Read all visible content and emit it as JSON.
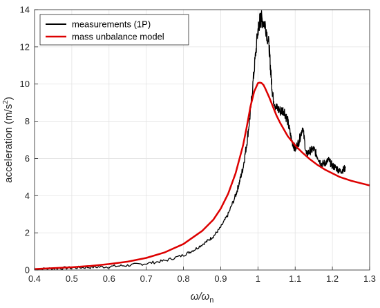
{
  "chart_data": {
    "type": "line",
    "xlabel": "ω/ω",
    "xlabel_sub": "n",
    "ylabel": "acceleration (m/s",
    "ylabel_sup": "2",
    "ylabel_close": ")",
    "xlim": [
      0.4,
      1.3
    ],
    "ylim": [
      0,
      14
    ],
    "x_ticks": [
      0.4,
      0.5,
      0.6,
      0.7,
      0.8,
      0.9,
      1.0,
      1.1,
      1.2,
      1.3
    ],
    "x_tick_labels": [
      "0.4",
      "0.5",
      "0.6",
      "0.7",
      "0.8",
      "0.9",
      "1",
      "1.1",
      "1.2",
      "1.3"
    ],
    "y_ticks": [
      0,
      2,
      4,
      6,
      8,
      10,
      12,
      14
    ],
    "y_tick_labels": [
      "0",
      "2",
      "4",
      "6",
      "8",
      "10",
      "12",
      "14"
    ],
    "grid": true,
    "legend_position": "top-left",
    "series": [
      {
        "name": "measurements (1P)",
        "color": "#000000",
        "x": [
          0.4,
          0.45,
          0.5,
          0.55,
          0.6,
          0.65,
          0.7,
          0.75,
          0.8,
          0.83,
          0.86,
          0.88,
          0.9,
          0.92,
          0.94,
          0.95,
          0.96,
          0.97,
          0.98,
          0.99,
          1.0,
          1.005,
          1.01,
          1.02,
          1.03,
          1.035,
          1.04,
          1.05,
          1.06,
          1.07,
          1.08,
          1.09,
          1.1,
          1.11,
          1.12,
          1.13,
          1.14,
          1.15,
          1.16,
          1.17,
          1.18,
          1.19,
          1.2,
          1.21,
          1.22,
          1.23,
          1.235
        ],
        "y": [
          0.05,
          0.08,
          0.12,
          0.15,
          0.18,
          0.25,
          0.35,
          0.5,
          0.8,
          1.1,
          1.5,
          1.8,
          2.3,
          3.0,
          4.0,
          4.7,
          5.5,
          6.8,
          8.5,
          10.8,
          12.9,
          13.4,
          13.5,
          13.2,
          12.0,
          10.5,
          9.3,
          8.7,
          8.55,
          8.6,
          8.0,
          7.0,
          6.5,
          6.9,
          7.7,
          6.2,
          6.4,
          6.5,
          6.1,
          5.7,
          5.75,
          5.9,
          5.6,
          5.5,
          5.3,
          5.4,
          5.5
        ]
      },
      {
        "name": "mass unbalance model",
        "color": "#dd0000",
        "x": [
          0.4,
          0.45,
          0.5,
          0.55,
          0.6,
          0.65,
          0.7,
          0.75,
          0.8,
          0.85,
          0.88,
          0.9,
          0.92,
          0.94,
          0.96,
          0.97,
          0.98,
          0.99,
          1.0,
          1.005,
          1.01,
          1.015,
          1.02,
          1.03,
          1.04,
          1.05,
          1.06,
          1.08,
          1.1,
          1.12,
          1.14,
          1.16,
          1.18,
          1.2,
          1.22,
          1.25,
          1.28,
          1.3
        ],
        "y": [
          0.05,
          0.1,
          0.15,
          0.22,
          0.32,
          0.45,
          0.65,
          0.95,
          1.4,
          2.1,
          2.7,
          3.3,
          4.1,
          5.2,
          6.7,
          7.7,
          8.8,
          9.6,
          10.05,
          10.08,
          10.05,
          9.95,
          9.75,
          9.3,
          8.8,
          8.3,
          7.9,
          7.2,
          6.7,
          6.3,
          5.95,
          5.65,
          5.4,
          5.2,
          5.0,
          4.8,
          4.65,
          4.55
        ]
      }
    ]
  }
}
